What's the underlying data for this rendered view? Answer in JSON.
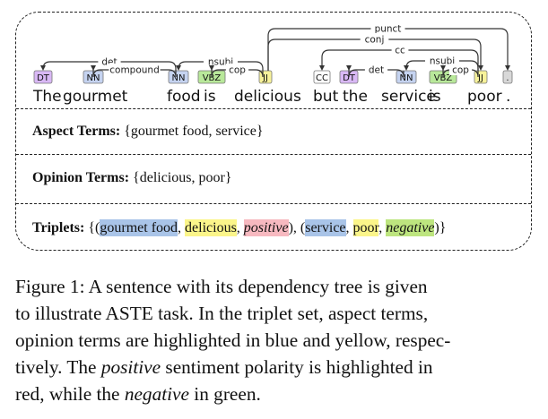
{
  "colors": {
    "aspect": "#a9c4e8",
    "opinion": "#fbf58a",
    "positive": "#f7b9c0",
    "negative": "#bde57f",
    "tag_DT": "#d9b8f5",
    "tag_NN": "#c5d3f0",
    "tag_VBZ": "#b8e89a",
    "tag_JJ": "#f7f29a",
    "tag_CC": "#ffffff",
    "tag_punct": "#d8d8d8"
  },
  "tree": {
    "words": [
      "The",
      "gourmet",
      "food",
      "is",
      "delicious",
      "but",
      "the",
      "service",
      "is",
      "poor",
      "."
    ],
    "tags": [
      "DT",
      "NN",
      "NN",
      "VBZ",
      "JJ",
      "CC",
      "DT",
      "NN",
      "VBZ",
      "JJ",
      "."
    ],
    "arc_labels": [
      "det",
      "compound",
      "nsubj",
      "cop",
      "punct",
      "conj",
      "cc",
      "det",
      "nsubj",
      "cop"
    ]
  },
  "rows": {
    "aspect_label": "Aspect Terms:",
    "aspect_value": "{gourmet food, service}",
    "opinion_label": "Opinion Terms:",
    "opinion_value": "{delicious, poor}",
    "triplet_label": "Triplets:",
    "t_open": "{(",
    "t1_aspect": "gourmet food",
    "t1_sep1": ", ",
    "t1_opinion": "delicious",
    "t1_sep2": ", ",
    "t1_sentiment": "positive",
    "t_mid": "), (",
    "t2_aspect": "service",
    "t2_sep1": ", ",
    "t2_opinion": "poor",
    "t2_sep2": ", ",
    "t2_sentiment": "negative",
    "t_close": ")}"
  },
  "caption": {
    "line1": "Figure 1: A sentence with its dependency tree is given",
    "line2": "to illustrate ASTE task. In the triplet set, aspect terms,",
    "line3": "opinion terms are highlighted in blue and yellow, respec-",
    "line4_pre": "tively. The ",
    "line4_em": "positive",
    "line4_post": " sentiment polarity is highlighted in",
    "line5_pre": "red, while the ",
    "line5_em": "negative",
    "line5_post": " in green."
  }
}
